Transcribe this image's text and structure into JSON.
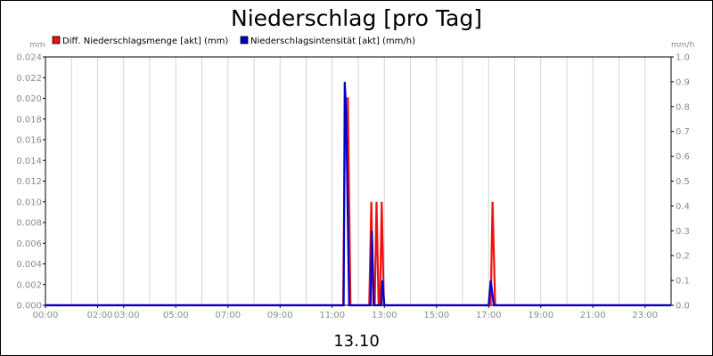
{
  "chart_data": {
    "type": "line",
    "title": "Niederschlag [pro Tag]",
    "subtitle": "13.10",
    "y_left_unit": "mm",
    "y_right_unit": "mm/h",
    "y_left_range": [
      0,
      0.024
    ],
    "y_right_range": [
      0,
      1.0
    ],
    "y_left_ticks": [
      "0.000",
      "0.002",
      "0.004",
      "0.006",
      "0.008",
      "0.010",
      "0.012",
      "0.014",
      "0.016",
      "0.018",
      "0.020",
      "0.022",
      "0.024"
    ],
    "y_right_ticks": [
      "0.0",
      "0.1",
      "0.2",
      "0.3",
      "0.4",
      "0.5",
      "0.6",
      "0.7",
      "0.8",
      "0.9",
      "1.0"
    ],
    "x_range_hours": [
      0,
      24
    ],
    "x_ticks": [
      {
        "hour": 0,
        "label": "00:00"
      },
      {
        "hour": 2,
        "label": "02:00"
      },
      {
        "hour": 3,
        "label": "03:00"
      },
      {
        "hour": 5,
        "label": "05:00"
      },
      {
        "hour": 7,
        "label": "07:00"
      },
      {
        "hour": 9,
        "label": "09:00"
      },
      {
        "hour": 11,
        "label": "11:00"
      },
      {
        "hour": 13,
        "label": "13:00"
      },
      {
        "hour": 15,
        "label": "15:00"
      },
      {
        "hour": 17,
        "label": "17:00"
      },
      {
        "hour": 19,
        "label": "19:00"
      },
      {
        "hour": 21,
        "label": "21:00"
      },
      {
        "hour": 23,
        "label": "23:00"
      }
    ],
    "legend_position": "top",
    "grid": "vertical",
    "series": [
      {
        "name": "Diff. Niederschlagsmenge [akt] (mm)",
        "color": "#ee1111",
        "axis": "left",
        "points": [
          [
            0,
            0
          ],
          [
            11.42,
            0
          ],
          [
            11.5,
            0.02
          ],
          [
            11.6,
            0.02
          ],
          [
            11.7,
            0
          ],
          [
            12.42,
            0
          ],
          [
            12.5,
            0.01
          ],
          [
            12.58,
            0
          ],
          [
            12.63,
            0
          ],
          [
            12.7,
            0.01
          ],
          [
            12.78,
            0
          ],
          [
            12.83,
            0
          ],
          [
            12.9,
            0.01
          ],
          [
            12.98,
            0
          ],
          [
            17.08,
            0
          ],
          [
            17.15,
            0.01
          ],
          [
            17.25,
            0
          ],
          [
            24,
            0
          ]
        ]
      },
      {
        "name": "Niederschlagsintensität [akt] (mm/h)",
        "color": "#0000cc",
        "axis": "right",
        "points": [
          [
            0,
            0
          ],
          [
            11.44,
            0
          ],
          [
            11.48,
            0.9
          ],
          [
            11.53,
            0.8
          ],
          [
            11.65,
            0
          ],
          [
            12.47,
            0
          ],
          [
            12.52,
            0.3
          ],
          [
            12.6,
            0
          ],
          [
            12.88,
            0
          ],
          [
            12.93,
            0.1
          ],
          [
            13.0,
            0
          ],
          [
            17.0,
            0
          ],
          [
            17.08,
            0.1
          ],
          [
            17.2,
            0
          ],
          [
            24,
            0
          ]
        ]
      }
    ]
  }
}
